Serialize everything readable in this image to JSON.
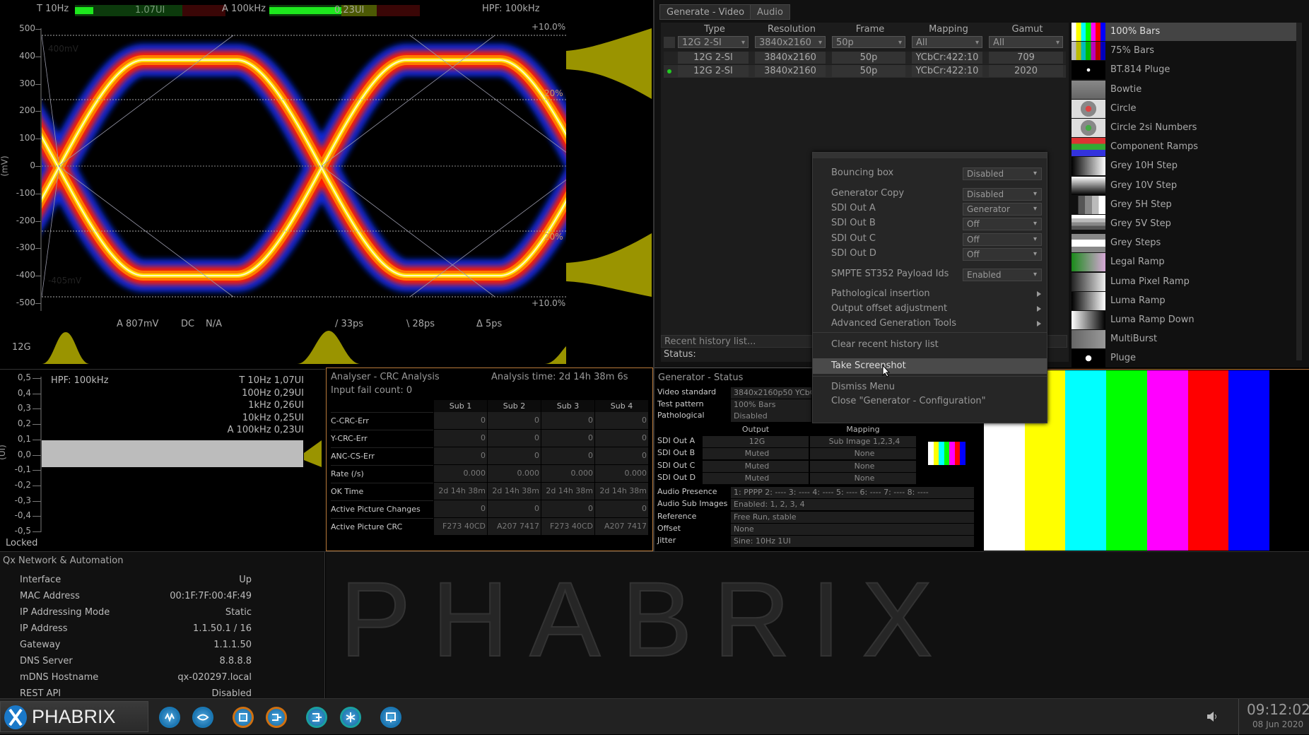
{
  "eye": {
    "meter1": {
      "label": "T 10Hz",
      "value": "1.07UI",
      "fill": 0.17
    },
    "meter2": {
      "label": "A 100kHz",
      "value": "0.23UI",
      "fill": 0.67
    },
    "hpf": "HPF: 100kHz",
    "y_unit": "(mV)",
    "y_ticks": [
      "500",
      "400",
      "300",
      "200",
      "100",
      "0",
      "-100",
      "-200",
      "-300",
      "-400",
      "-500"
    ],
    "top_level": "400mV",
    "bottom_level": "-405mV",
    "pct_top": "+10.0%",
    "pct_bottom": "+10.0%",
    "mid_top": "20%",
    "mid_bottom": "20%",
    "amplitude": "A 807mV",
    "coupling": "DC",
    "na": "N/A",
    "rise": "/ 33ps",
    "fall": "\\ 28ps",
    "delta": "Δ 5ps",
    "rate": "12G"
  },
  "generate": {
    "tabs": [
      "Generate - Video",
      "Audio"
    ],
    "columns": [
      "Type",
      "Resolution",
      "Frame",
      "Mapping",
      "Gamut"
    ],
    "filters": [
      "12G 2-SI",
      "3840x2160",
      "50p",
      "All",
      "All"
    ],
    "rows": [
      [
        "12G 2-SI",
        "3840x2160",
        "50p",
        "YCbCr:422:10",
        "709"
      ],
      [
        "12G 2-SI",
        "3840x2160",
        "50p",
        "YCbCr:422:10",
        "2020"
      ]
    ],
    "active_row": 1,
    "recent": "Recent history list...",
    "status": "Status:",
    "patterns": [
      "100% Bars",
      "75% Bars",
      "BT.814 Pluge",
      "Bowtie",
      "Circle",
      "Circle 2si Numbers",
      "Component Ramps",
      "Grey 10H Step",
      "Grey 10V Step",
      "Grey 5H Step",
      "Grey 5V Step",
      "Grey Steps",
      "Legal Ramp",
      "Luma Pixel Ramp",
      "Luma Ramp",
      "Luma Ramp Down",
      "MultiBurst",
      "Pluge"
    ],
    "selected_pattern": 0
  },
  "menu": {
    "settings": [
      {
        "label": "Bouncing box",
        "value": "Disabled"
      },
      {
        "label": "Generator Copy",
        "value": "Disabled"
      },
      {
        "label": "SDI Out A",
        "value": "Generator"
      },
      {
        "label": "SDI Out B",
        "value": "Off"
      },
      {
        "label": "SDI Out C",
        "value": "Off"
      },
      {
        "label": "SDI Out D",
        "value": "Off"
      },
      {
        "label": "SMPTE ST352 Payload Ids",
        "value": "Enabled"
      }
    ],
    "submenus": [
      "Pathological insertion",
      "Output offset adjustment",
      "Advanced Generation Tools"
    ],
    "actions": [
      "Clear recent history list",
      "Take Screenshot",
      "Dismiss Menu",
      "Close \"Generator - Configuration\""
    ]
  },
  "jitter": {
    "hpf": "HPF: 100kHz",
    "readings": [
      "T 10Hz 1,07UI",
      "100Hz 0,29UI",
      "1kHz 0,26UI",
      "10kHz 0,25UI",
      "A 100kHz 0,23UI"
    ],
    "y_unit": "(UI)",
    "y_ticks": [
      "0,5",
      "0,4",
      "0,3",
      "0,2",
      "0,1",
      "0,0",
      "-0,1",
      "-0,2",
      "-0,3",
      "-0,4",
      "-0,5"
    ],
    "status": "Locked"
  },
  "crc": {
    "title": "Analyser - CRC Analysis",
    "analysis_time": "Analysis time: 2d 14h 38m 6s",
    "fail_count": "Input fail count:  0",
    "columns": [
      "Sub 1",
      "Sub 2",
      "Sub 3",
      "Sub 4"
    ],
    "rows": [
      {
        "label": "C-CRC-Err",
        "values": [
          "0",
          "0",
          "0",
          "0"
        ]
      },
      {
        "label": "Y-CRC-Err",
        "values": [
          "0",
          "0",
          "0",
          "0"
        ]
      },
      {
        "label": "ANC-CS-Err",
        "values": [
          "0",
          "0",
          "0",
          "0"
        ]
      },
      {
        "label": "Rate (/s)",
        "values": [
          "0.000",
          "0.000",
          "0.000",
          "0.000"
        ]
      },
      {
        "label": "OK Time",
        "values": [
          "2d 14h 38m",
          "2d 14h 38m",
          "2d 14h 38m",
          "2d 14h 38m"
        ]
      },
      {
        "label": "Active Picture Changes",
        "values": [
          "0",
          "0",
          "0",
          "0"
        ]
      },
      {
        "label": "Active Picture CRC",
        "values": [
          "F273 40CD",
          "A207 7417",
          "F273 40CD",
          "A207 7417"
        ]
      }
    ]
  },
  "gen_status": {
    "title": "Generator - Status",
    "info": [
      [
        "Video standard",
        "3840x2160p50 YCbCr:422"
      ],
      [
        "Test pattern",
        "100% Bars"
      ],
      [
        "Pathological",
        "Disabled"
      ]
    ],
    "out_headers": [
      "Output",
      "Mapping"
    ],
    "outputs": [
      [
        "SDI Out A",
        "12G",
        "Sub Image 1,2,3,4"
      ],
      [
        "SDI Out B",
        "Muted",
        "None"
      ],
      [
        "SDI Out C",
        "Muted",
        "None"
      ],
      [
        "SDI Out D",
        "Muted",
        "None"
      ]
    ],
    "extra": [
      [
        "Audio Presence",
        "1: PPPP 2: ---- 3: ---- 4: ---- 5: ---- 6: ---- 7: ---- 8: ----"
      ],
      [
        "Audio Sub Images",
        "Enabled: 1, 2, 3, 4"
      ],
      [
        "Reference",
        "Free Run, stable"
      ],
      [
        "Offset",
        "None"
      ],
      [
        "Jitter",
        "Sine: 10Hz 1UI"
      ]
    ]
  },
  "bars_colors": [
    "#ffffff",
    "#ffff00",
    "#00ffff",
    "#00ff00",
    "#ff00ff",
    "#ff0000",
    "#0000ff"
  ],
  "network": {
    "title": "Qx Network & Automation",
    "items": [
      [
        "Interface",
        "Up"
      ],
      [
        "MAC Address",
        "00:1F:7F:00:4F:49"
      ],
      [
        "IP Addressing Mode",
        "Static"
      ],
      [
        "IP Address",
        "1.1.50.1 / 16"
      ],
      [
        "Gateway",
        "1.1.1.50"
      ],
      [
        "DNS Server",
        "8.8.8.8"
      ],
      [
        "mDNS Hostname",
        "qx-020297.local"
      ],
      [
        "REST API",
        "Disabled"
      ]
    ]
  },
  "watermark": "PHABRIX",
  "taskbar": {
    "logo": "PHABRIX",
    "icons": [
      "waveform-icon",
      "eye-icon",
      "window-icon",
      "generator-icon",
      "output-icon",
      "network-icon",
      "display-icon"
    ],
    "time": "09:12:02",
    "date": "08 Jun 2020"
  }
}
